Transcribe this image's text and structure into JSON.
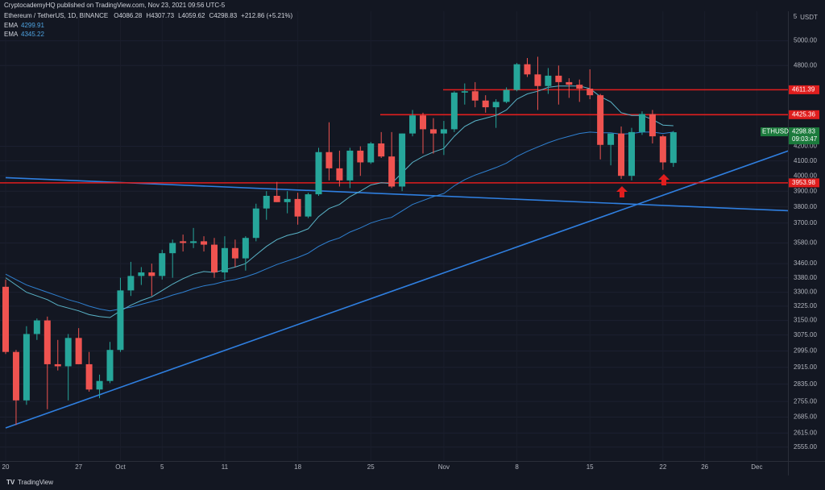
{
  "header": {
    "publisher": "CryptocademyHQ published on TradingView.com, Nov 23, 2021 09:56 UTC-5",
    "symbol": "Ethereum / TetherUS, 1D, BINANCE",
    "ohlc": [
      "O4086.28",
      "H4307.73",
      "L4059.62",
      "C4298.83",
      "+212.86 (+5.21%)"
    ]
  },
  "chart_data": {
    "type": "candlestick",
    "currency": "USDT",
    "axis_mark": "5",
    "categories": [
      "20",
      null,
      null,
      null,
      null,
      null,
      null,
      "27",
      null,
      null,
      null,
      "Oct",
      null,
      null,
      null,
      "5",
      null,
      null,
      null,
      null,
      null,
      "11",
      null,
      null,
      null,
      null,
      null,
      null,
      "18",
      null,
      null,
      null,
      null,
      null,
      null,
      "25",
      null,
      null,
      null,
      null,
      null,
      null,
      "Nov",
      null,
      null,
      null,
      null,
      null,
      null,
      "8",
      null,
      null,
      null,
      null,
      null,
      null,
      "15",
      null,
      null,
      null,
      null,
      null,
      null,
      "22",
      null,
      null,
      null,
      "26",
      null,
      null,
      null,
      null,
      "Dec",
      null,
      null,
      null
    ],
    "open": [
      3330,
      2990,
      2760,
      3080,
      3150,
      2930,
      2920,
      3060,
      2930,
      2810,
      2850,
      3000,
      3310,
      3390,
      3410,
      3390,
      3520,
      3590,
      3580,
      3590,
      3570,
      3410,
      3550,
      3490,
      3610,
      3790,
      3870,
      3830,
      3850,
      3740,
      3880,
      4160,
      4050,
      3970,
      4170,
      4090,
      4220,
      4130,
      3930,
      4290,
      4420,
      4320,
      4290,
      4320,
      4590,
      4600,
      4530,
      4480,
      4520,
      4610,
      4810,
      4730,
      4640,
      4720,
      4670,
      4650,
      4620,
      4570,
      4210,
      4290,
      4000,
      4300,
      4430,
      4270,
      4086.28,
      null,
      null,
      null,
      null,
      null,
      null,
      null,
      null,
      null,
      null,
      null
    ],
    "high": [
      3370,
      3000,
      3120,
      3160,
      3170,
      3050,
      3080,
      3110,
      2990,
      2880,
      3040,
      3380,
      3470,
      3440,
      3460,
      3540,
      3600,
      3630,
      3670,
      3620,
      3610,
      3620,
      3600,
      3620,
      3820,
      3900,
      3960,
      3900,
      3890,
      3890,
      4190,
      4370,
      4170,
      4190,
      4200,
      4230,
      4300,
      4300,
      4290,
      4460,
      4440,
      4400,
      4380,
      4600,
      4660,
      4670,
      4570,
      4540,
      4630,
      4820,
      4860,
      4870,
      4780,
      4800,
      4700,
      4690,
      4770,
      4580,
      4290,
      4340,
      4330,
      4450,
      4460,
      4280,
      4307.73,
      null,
      null,
      null,
      null,
      null,
      null,
      null,
      null,
      null,
      null,
      null
    ],
    "low": [
      2980,
      2650,
      2740,
      3050,
      2720,
      2900,
      2760,
      2930,
      2800,
      2770,
      2840,
      2990,
      3280,
      3340,
      3280,
      3370,
      3380,
      3530,
      3550,
      3530,
      3380,
      3370,
      3440,
      3420,
      3590,
      3720,
      3830,
      3760,
      3690,
      3730,
      3870,
      3970,
      3930,
      3920,
      4000,
      4080,
      4120,
      3920,
      3900,
      4270,
      4150,
      4150,
      4140,
      4300,
      4500,
      4480,
      4440,
      4330,
      4510,
      4600,
      4710,
      4460,
      4580,
      4500,
      4550,
      4520,
      4540,
      4110,
      4070,
      3980,
      3970,
      4280,
      4220,
      4040,
      4059.62,
      null,
      null,
      null,
      null,
      null,
      null,
      null,
      null,
      null,
      null,
      null
    ],
    "close": [
      2990,
      2760,
      3080,
      3150,
      2930,
      2920,
      3060,
      2930,
      2810,
      2850,
      3000,
      3310,
      3390,
      3410,
      3390,
      3520,
      3580,
      3580,
      3590,
      3570,
      3410,
      3550,
      3490,
      3610,
      3790,
      3870,
      3830,
      3850,
      3740,
      3880,
      4160,
      4050,
      3970,
      4170,
      4090,
      4220,
      4130,
      3930,
      4290,
      4420,
      4320,
      4290,
      4320,
      4590,
      4600,
      4530,
      4480,
      4520,
      4610,
      4810,
      4730,
      4640,
      4720,
      4670,
      4650,
      4620,
      4570,
      4210,
      4290,
      4000,
      4300,
      4430,
      4270,
      4090,
      4298.83,
      null,
      null,
      null,
      null,
      null,
      null,
      null,
      null,
      null,
      null,
      null
    ],
    "up_color": "#26a69a",
    "down_color": "#ef5350",
    "series": [
      {
        "name": "EMA",
        "color": "#2f80d1",
        "values": [
          3400,
          3370,
          3340,
          3320,
          3300,
          3280,
          3260,
          3245,
          3225,
          3210,
          3200,
          3210,
          3220,
          3235,
          3250,
          3265,
          3285,
          3300,
          3320,
          3335,
          3345,
          3360,
          3370,
          3385,
          3405,
          3430,
          3455,
          3475,
          3495,
          3520,
          3560,
          3590,
          3610,
          3645,
          3670,
          3700,
          3720,
          3735,
          3775,
          3815,
          3840,
          3865,
          3885,
          3935,
          3975,
          4005,
          4030,
          4055,
          4085,
          4130,
          4165,
          4195,
          4225,
          4250,
          4270,
          4290,
          4300,
          4295,
          4295,
          4285,
          4290,
          4300,
          4300,
          4290,
          4299.91,
          null,
          null,
          null,
          null,
          null,
          null,
          null,
          null,
          null,
          null,
          null
        ]
      },
      {
        "name": "EMA",
        "color": "#5ab4c8",
        "values": [
          3380,
          3340,
          3300,
          3280,
          3260,
          3230,
          3215,
          3200,
          3180,
          3170,
          3165,
          3200,
          3230,
          3255,
          3275,
          3310,
          3345,
          3375,
          3400,
          3415,
          3410,
          3425,
          3440,
          3460,
          3510,
          3560,
          3600,
          3625,
          3640,
          3665,
          3740,
          3790,
          3815,
          3865,
          3900,
          3940,
          3955,
          3950,
          4020,
          4090,
          4130,
          4160,
          4185,
          4270,
          4340,
          4380,
          4400,
          4420,
          4460,
          4540,
          4580,
          4600,
          4630,
          4640,
          4640,
          4640,
          4620,
          4560,
          4520,
          4440,
          4420,
          4420,
          4390,
          4350,
          4345.22,
          null,
          null,
          null,
          null,
          null,
          null,
          null,
          null,
          null,
          null,
          null
        ]
      }
    ],
    "log_scale": true,
    "grid": true,
    "ylim": [
      2497,
      5250
    ],
    "yticks": [
      {
        "value": 5000,
        "label": "5000.00"
      },
      {
        "value": 4800,
        "label": "4800.00"
      },
      {
        "value": 4200,
        "label": "4200.00"
      },
      {
        "value": 4100,
        "label": "4100.00"
      },
      {
        "value": 4000,
        "label": "4000.00"
      },
      {
        "value": 3900,
        "label": "3900.00"
      },
      {
        "value": 3800,
        "label": "3800.00"
      },
      {
        "value": 3700,
        "label": "3700.00"
      },
      {
        "value": 3580,
        "label": "3580.00"
      },
      {
        "value": 3460,
        "label": "3460.00"
      },
      {
        "value": 3380,
        "label": "3380.00"
      },
      {
        "value": 3300,
        "label": "3300.00"
      },
      {
        "value": 3225,
        "label": "3225.00"
      },
      {
        "value": 3150,
        "label": "3150.00"
      },
      {
        "value": 3075,
        "label": "3075.00"
      },
      {
        "value": 2995,
        "label": "2995.00"
      },
      {
        "value": 2915,
        "label": "2915.00"
      },
      {
        "value": 2835,
        "label": "2835.00"
      },
      {
        "value": 2755,
        "label": "2755.00"
      },
      {
        "value": 2685,
        "label": "2685.00"
      },
      {
        "value": 2615,
        "label": "2615.00"
      },
      {
        "value": 2555,
        "label": "2555.00"
      }
    ],
    "hlines": [
      {
        "value": 4611.39,
        "label": "4611.39",
        "color": "#e01e1e"
      },
      {
        "value": 4425.36,
        "label": "4425.36",
        "color": "#e01e1e"
      },
      {
        "value": 3953.98,
        "label": "3953.98",
        "color": "#e01e1e"
      }
    ],
    "trendlines": [
      {
        "color": "#2f7fe0",
        "values": [
          3988,
          3776
        ]
      },
      {
        "color": "#2f7fe0",
        "values": [
          2637,
          4168
        ]
      }
    ],
    "last_price": {
      "symbol": "ETHUSDT",
      "value": 4298.83,
      "countdown": "09:03:47",
      "color": "#1b7a3c"
    }
  },
  "footer": "TradingView"
}
